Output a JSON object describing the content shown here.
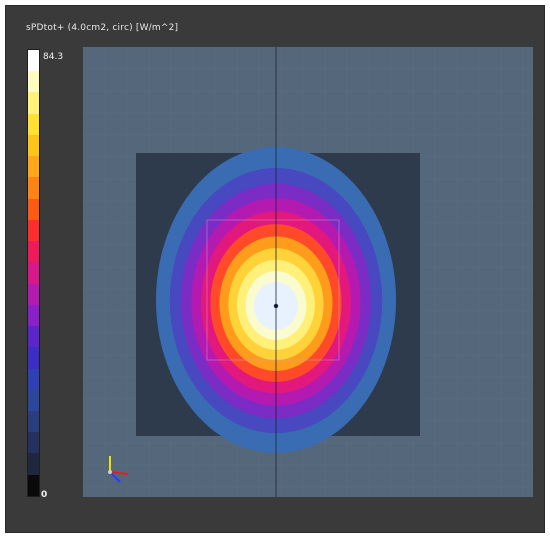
{
  "viewer": {
    "quantity_title": "sPDtot+ (4.0cm2, circ) [W/m^2]",
    "colorbar": {
      "max_label": "84.3",
      "min_label": "0",
      "max_value": 84.3,
      "min_value": 0,
      "colors_top_to_bottom": [
        "#ffffff",
        "#fffcc2",
        "#fff27a",
        "#ffe033",
        "#ffc41a",
        "#ffa61a",
        "#ff8414",
        "#ff5a14",
        "#ff2e2e",
        "#f01a5a",
        "#d8188a",
        "#b41ab0",
        "#8a20c8",
        "#5a26cc",
        "#3c2ec4",
        "#2f40b4",
        "#2a479c",
        "#283e7e",
        "#243060",
        "#1e2640",
        "#0a0a0a"
      ]
    },
    "field_map": {
      "background_color": "#55677b",
      "substrate_color": "#2e3b4c",
      "contour_colors_outer_to_inner": [
        "#3a6cb4",
        "#4848c0",
        "#7a2cc4",
        "#b41ab0",
        "#e3187c",
        "#ff4a2a",
        "#ff9c1c",
        "#ffd23a",
        "#fff07a",
        "#fbfbd0",
        "#e8f2ff"
      ],
      "peak_marker_color": "#1a1a3a"
    },
    "axes_indicator": {
      "x_axis_color": "#e02020",
      "y_axis_color": "#f0e000",
      "z_axis_color": "#2040ff"
    }
  }
}
